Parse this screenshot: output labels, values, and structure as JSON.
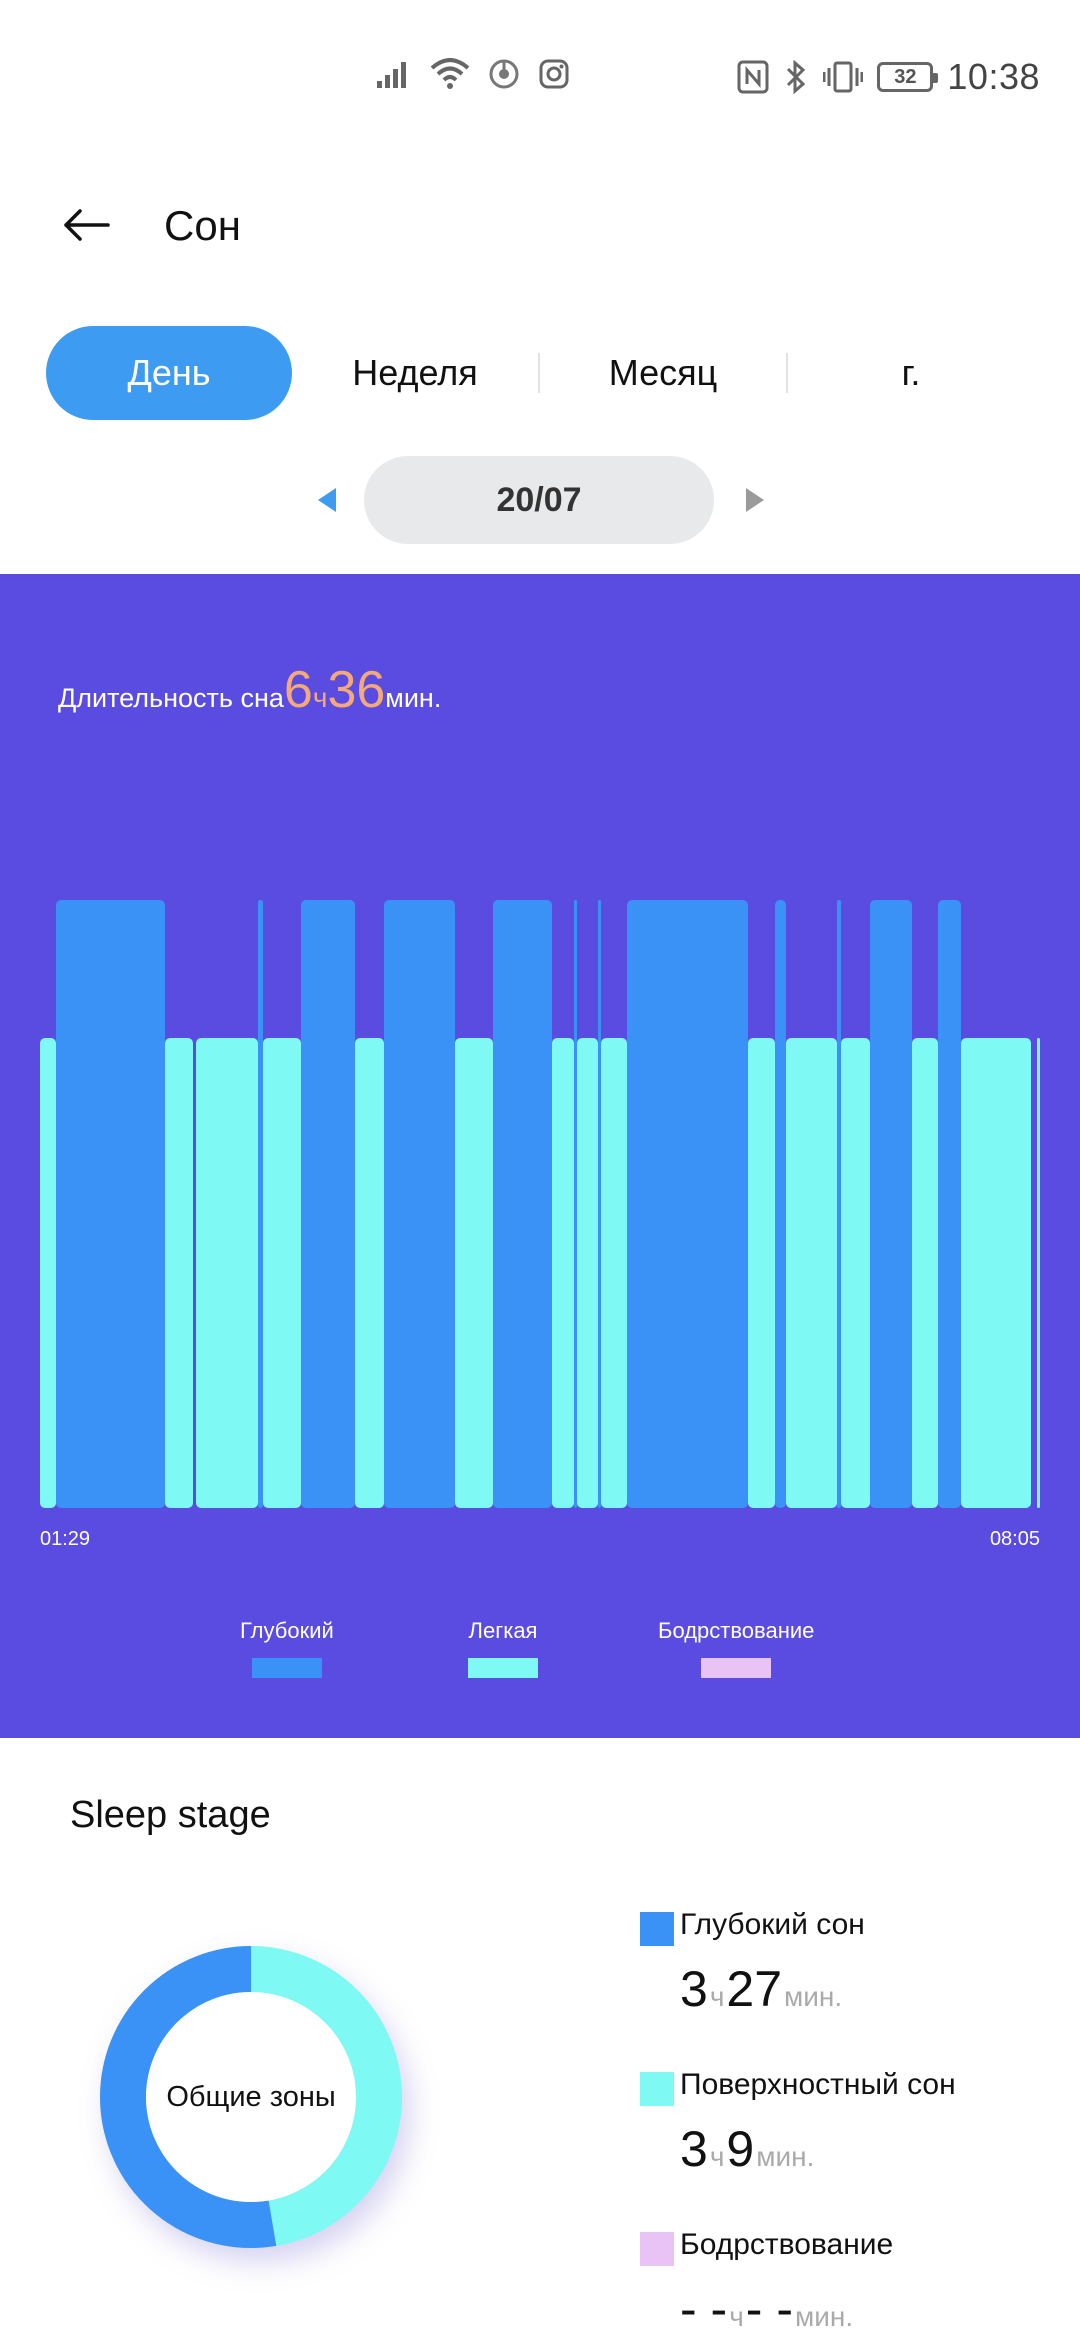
{
  "status_bar": {
    "time": "10:38",
    "battery": "32",
    "icons": [
      "signal-icon",
      "wifi-icon",
      "music-app-icon",
      "instagram-icon",
      "nfc-icon",
      "bluetooth-icon",
      "vibrate-icon"
    ]
  },
  "header": {
    "back_icon": "arrow-left-icon",
    "title": "Сон"
  },
  "tabs": [
    {
      "label": "День",
      "active": true
    },
    {
      "label": "Неделя",
      "active": false
    },
    {
      "label": "Месяц",
      "active": false
    },
    {
      "label": "г.",
      "active": false
    }
  ],
  "date_picker": {
    "date": "20/07",
    "prev_icon": "triangle-left-icon",
    "next_icon": "triangle-right-icon"
  },
  "summary": {
    "label": "Длительность сна",
    "hours": "6",
    "hours_unit": "ч",
    "minutes": "36",
    "minutes_unit": "мин."
  },
  "chart": {
    "start_time": "01:29",
    "end_time": "08:05",
    "legend": [
      {
        "label": "Глубокий",
        "color": "#3a92f6"
      },
      {
        "label": "Легкая",
        "color": "#7ef9f3"
      },
      {
        "label": "Бодрствование",
        "color": "#e9c3f5"
      }
    ]
  },
  "chart_data": {
    "type": "bar",
    "x_range": [
      "01:29",
      "08:05"
    ],
    "stages": [
      "deep",
      "light",
      "awake"
    ],
    "segments": [
      {
        "stage": "light",
        "start": 0.0,
        "end": 0.016
      },
      {
        "stage": "deep",
        "start": 0.016,
        "end": 0.125
      },
      {
        "stage": "light",
        "start": 0.125,
        "end": 0.153
      },
      {
        "stage": "light",
        "start": 0.156,
        "end": 0.218
      },
      {
        "stage": "deep",
        "start": 0.218,
        "end": 0.223
      },
      {
        "stage": "light",
        "start": 0.223,
        "end": 0.261
      },
      {
        "stage": "deep",
        "start": 0.261,
        "end": 0.315
      },
      {
        "stage": "light",
        "start": 0.315,
        "end": 0.344
      },
      {
        "stage": "deep",
        "start": 0.344,
        "end": 0.415
      },
      {
        "stage": "light",
        "start": 0.415,
        "end": 0.453
      },
      {
        "stage": "deep",
        "start": 0.453,
        "end": 0.512
      },
      {
        "stage": "light",
        "start": 0.512,
        "end": 0.534
      },
      {
        "stage": "deep",
        "start": 0.534,
        "end": 0.537
      },
      {
        "stage": "light",
        "start": 0.537,
        "end": 0.558
      },
      {
        "stage": "deep",
        "start": 0.558,
        "end": 0.561
      },
      {
        "stage": "light",
        "start": 0.561,
        "end": 0.587
      },
      {
        "stage": "deep",
        "start": 0.587,
        "end": 0.708
      },
      {
        "stage": "light",
        "start": 0.708,
        "end": 0.735
      },
      {
        "stage": "deep",
        "start": 0.735,
        "end": 0.746
      },
      {
        "stage": "light",
        "start": 0.746,
        "end": 0.797
      },
      {
        "stage": "deep",
        "start": 0.797,
        "end": 0.801
      },
      {
        "stage": "light",
        "start": 0.801,
        "end": 0.83
      },
      {
        "stage": "deep",
        "start": 0.83,
        "end": 0.872
      },
      {
        "stage": "light",
        "start": 0.872,
        "end": 0.898
      },
      {
        "stage": "deep",
        "start": 0.898,
        "end": 0.921
      },
      {
        "stage": "light",
        "start": 0.921,
        "end": 0.991
      },
      {
        "stage": "light",
        "start": 0.997,
        "end": 1.0
      }
    ]
  },
  "sleep_stage": {
    "title": "Sleep stage",
    "donut_label": "Общие зоны",
    "donut_share": {
      "deep": 0.527,
      "light": 0.473
    },
    "items": [
      {
        "name": "Глубокий сон",
        "color": "#3a92f6",
        "hours": "3",
        "hours_unit": "ч",
        "minutes": "27",
        "minutes_unit": "мин."
      },
      {
        "name": "Поверхностный сон",
        "color": "#7ef9f3",
        "hours": "3",
        "hours_unit": "ч",
        "minutes": "9",
        "minutes_unit": "мин."
      },
      {
        "name": "Бодрствование",
        "color": "#e9c3f5",
        "hours": "- -",
        "hours_unit": "ч",
        "minutes": "- -",
        "minutes_unit": "мин."
      }
    ]
  }
}
